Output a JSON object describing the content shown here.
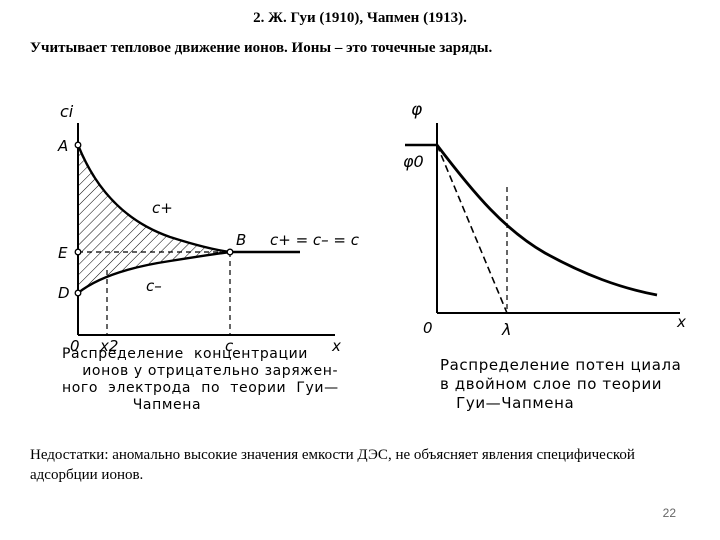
{
  "title": "2. Ж. Гуи (1910), Чапмен (1913).",
  "subtitle": "Учитывает тепловое движение ионов. Ионы – это точечные заряды.",
  "figure_left": {
    "y_axis": "ci",
    "x_axis": "x",
    "origin": "0",
    "points": {
      "A": "A",
      "E": "E",
      "D": "D",
      "B": "B"
    },
    "x_ticks": {
      "x2": "x2",
      "c": "c"
    },
    "curve_labels": {
      "c_plus": "c+",
      "c_minus": "c–",
      "bulk": "c+ = c– = c"
    },
    "caption_lines": [
      "Распределение  концентрации",
      "    ионов у отрицательно заряжен-",
      "ного  электрода  по  теории  Гуи—",
      "              Чапмена"
    ]
  },
  "figure_right": {
    "y_axis": "φ",
    "phi0": "φ0",
    "x_axis": "x",
    "origin": "0",
    "lambda": "λ",
    "caption_lines": [
      "Распределение потен циала",
      "в двойном слое по теории",
      "   Гуи—Чапмена"
    ]
  },
  "note": "Недостатки: аномально высокие значения емкости ДЭС, не объясняет явления специфической адсорбции ионов.",
  "page_number": "22"
}
